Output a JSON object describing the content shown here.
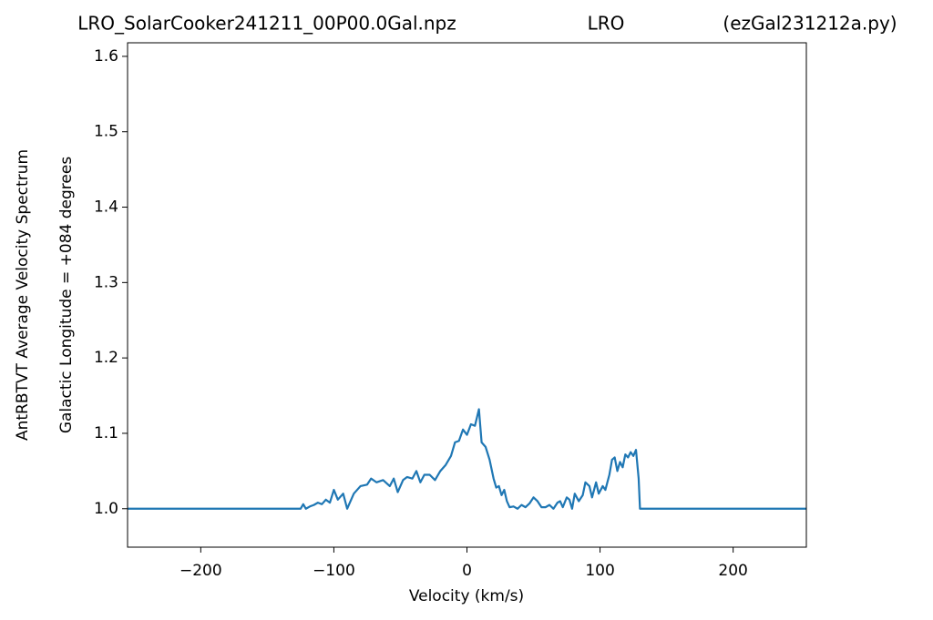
{
  "chart_data": {
    "type": "line",
    "title": [
      "LRO_SolarCooker241211_00P00.0Gal.npz",
      "LRO",
      "(ezGal231212a.py)"
    ],
    "ylabel": [
      "AntRBTVT Average Velocity Spectrum",
      "Galactic Longitude = +084 degrees"
    ],
    "xlabel": "Velocity (km/s)",
    "xlim": [
      -255,
      255
    ],
    "ylim": [
      0.949,
      1.618
    ],
    "xticks": [
      {
        "value": -200,
        "label": "−200"
      },
      {
        "value": -100,
        "label": "−100"
      },
      0,
      100,
      200
    ],
    "yticks": [
      {
        "value": 1,
        "label": "1.0"
      },
      1.1,
      1.2,
      1.3,
      1.4,
      1.5,
      1.6
    ],
    "grid": false,
    "series": [
      {
        "color": "#1f77b4",
        "x": [
          -255,
          -125,
          -123,
          -121,
          -118,
          -115,
          -112,
          -109,
          -106,
          -103,
          -100,
          -97,
          -93,
          -90,
          -85,
          -80,
          -75,
          -72,
          -68,
          -63,
          -58,
          -55,
          -52,
          -48,
          -45,
          -41,
          -38,
          -35,
          -32,
          -28,
          -24,
          -20,
          -16,
          -12,
          -9,
          -6,
          -3,
          0,
          3,
          6,
          9,
          11,
          14,
          17,
          20,
          22,
          24,
          26,
          28,
          30,
          32,
          35,
          38,
          41,
          44,
          47,
          50,
          53,
          56,
          59,
          62,
          65,
          68,
          70,
          72,
          75,
          77,
          79,
          81,
          84,
          87,
          89,
          92,
          94,
          97,
          99,
          102,
          104,
          107,
          109,
          111,
          113,
          115,
          117,
          119,
          121,
          123,
          125,
          127,
          129,
          130,
          255
        ],
        "values": [
          1.0,
          1.0,
          1.006,
          1.0,
          1.003,
          1.005,
          1.008,
          1.006,
          1.012,
          1.008,
          1.025,
          1.012,
          1.02,
          1.0,
          1.02,
          1.03,
          1.032,
          1.04,
          1.035,
          1.038,
          1.03,
          1.04,
          1.022,
          1.038,
          1.042,
          1.04,
          1.05,
          1.035,
          1.045,
          1.045,
          1.038,
          1.05,
          1.058,
          1.07,
          1.088,
          1.09,
          1.105,
          1.098,
          1.112,
          1.11,
          1.132,
          1.088,
          1.082,
          1.065,
          1.04,
          1.028,
          1.03,
          1.018,
          1.025,
          1.01,
          1.002,
          1.003,
          1.0,
          1.005,
          1.002,
          1.007,
          1.015,
          1.01,
          1.002,
          1.002,
          1.005,
          1.0,
          1.008,
          1.01,
          1.002,
          1.015,
          1.012,
          1.0,
          1.02,
          1.01,
          1.018,
          1.035,
          1.03,
          1.015,
          1.035,
          1.02,
          1.03,
          1.025,
          1.045,
          1.065,
          1.068,
          1.05,
          1.062,
          1.055,
          1.072,
          1.068,
          1.075,
          1.07,
          1.078,
          1.04,
          1.0,
          1.0
        ]
      }
    ]
  }
}
